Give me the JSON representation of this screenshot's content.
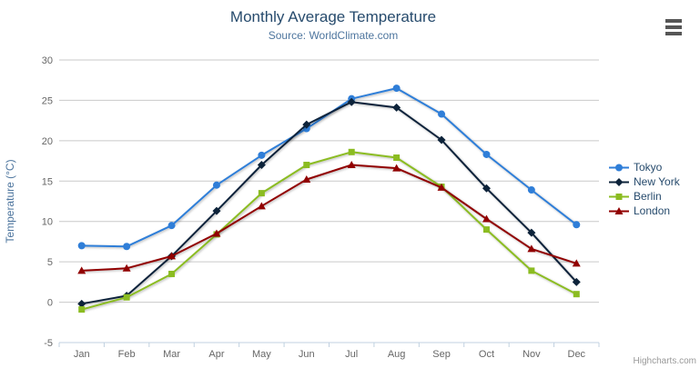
{
  "chart_data": {
    "type": "line",
    "title": "Monthly Average Temperature",
    "subtitle": "Source: WorldClimate.com",
    "ylabel": "Temperature (°C)",
    "xlabel": "",
    "categories": [
      "Jan",
      "Feb",
      "Mar",
      "Apr",
      "May",
      "Jun",
      "Jul",
      "Aug",
      "Sep",
      "Oct",
      "Nov",
      "Dec"
    ],
    "series": [
      {
        "name": "Tokyo",
        "color": "#2f7ed8",
        "marker": "circle",
        "values": [
          7.0,
          6.9,
          9.5,
          14.5,
          18.2,
          21.5,
          25.2,
          26.5,
          23.3,
          18.3,
          13.9,
          9.6
        ]
      },
      {
        "name": "New York",
        "color": "#0d233a",
        "marker": "diamond",
        "values": [
          -0.2,
          0.8,
          5.7,
          11.3,
          17.0,
          22.0,
          24.8,
          24.1,
          20.1,
          14.1,
          8.6,
          2.5
        ]
      },
      {
        "name": "Berlin",
        "color": "#8bbc21",
        "marker": "square",
        "values": [
          -0.9,
          0.6,
          3.5,
          8.4,
          13.5,
          17.0,
          18.6,
          17.9,
          14.3,
          9.0,
          3.9,
          1.0
        ]
      },
      {
        "name": "London",
        "color": "#910000",
        "marker": "triangle",
        "values": [
          3.9,
          4.2,
          5.7,
          8.5,
          11.9,
          15.2,
          17.0,
          16.6,
          14.2,
          10.3,
          6.6,
          4.8
        ]
      }
    ],
    "ylim": [
      -5,
      30
    ],
    "ytick_step": 5,
    "grid": true,
    "legend_position": "right"
  },
  "credits": {
    "label": "Highcharts.com"
  },
  "colors": {
    "title": "#274b6d",
    "subtitle": "#4d759e",
    "axis_labels": "#666666",
    "axis_title": "#4d759e",
    "gridline": "#c9c9c9",
    "axis_line": "#c0d0e0",
    "legend_text": "#274b6d",
    "credits_text": "#999999"
  }
}
